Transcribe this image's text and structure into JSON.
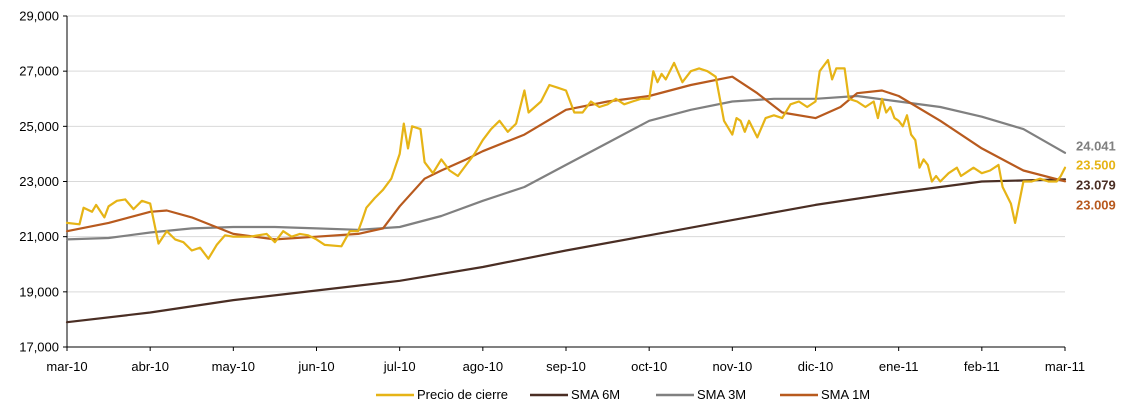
{
  "chart_data": {
    "type": "line",
    "title": "",
    "xlabel": "",
    "ylabel": "",
    "ylim": [
      17000,
      29000
    ],
    "y_ticks": [
      17000,
      19000,
      21000,
      23000,
      25000,
      27000,
      29000
    ],
    "y_tick_labels": [
      "17,000",
      "19,000",
      "21,000",
      "23,000",
      "25,000",
      "27,000",
      "29,000"
    ],
    "x_ticks": [
      "mar-10",
      "abr-10",
      "may-10",
      "jun-10",
      "jul-10",
      "ago-10",
      "sep-10",
      "oct-10",
      "nov-10",
      "dic-10",
      "ene-11",
      "feb-11",
      "mar-11"
    ],
    "grid": "horizontal",
    "legend_position": "bottom",
    "series": [
      {
        "name": "Precio de cierre",
        "color": "#E6B416",
        "end_label": "23.500",
        "points": [
          [
            0,
            21500
          ],
          [
            0.15,
            21450
          ],
          [
            0.2,
            22050
          ],
          [
            0.3,
            21900
          ],
          [
            0.35,
            22150
          ],
          [
            0.45,
            21700
          ],
          [
            0.5,
            22100
          ],
          [
            0.6,
            22300
          ],
          [
            0.7,
            22350
          ],
          [
            0.8,
            22000
          ],
          [
            0.9,
            22300
          ],
          [
            1.0,
            22200
          ],
          [
            1.1,
            20750
          ],
          [
            1.2,
            21200
          ],
          [
            1.3,
            20900
          ],
          [
            1.4,
            20800
          ],
          [
            1.5,
            20500
          ],
          [
            1.6,
            20600
          ],
          [
            1.7,
            20200
          ],
          [
            1.8,
            20700
          ],
          [
            1.9,
            21050
          ],
          [
            2.0,
            21000
          ],
          [
            2.2,
            21000
          ],
          [
            2.4,
            21100
          ],
          [
            2.5,
            20800
          ],
          [
            2.6,
            21200
          ],
          [
            2.7,
            21000
          ],
          [
            2.8,
            21100
          ],
          [
            2.9,
            21050
          ],
          [
            3.0,
            20900
          ],
          [
            3.1,
            20700
          ],
          [
            3.3,
            20650
          ],
          [
            3.4,
            21200
          ],
          [
            3.5,
            21200
          ],
          [
            3.55,
            21600
          ],
          [
            3.6,
            22050
          ],
          [
            3.7,
            22400
          ],
          [
            3.8,
            22700
          ],
          [
            3.9,
            23100
          ],
          [
            4.0,
            24000
          ],
          [
            4.05,
            25100
          ],
          [
            4.1,
            24200
          ],
          [
            4.15,
            25000
          ],
          [
            4.25,
            24900
          ],
          [
            4.3,
            23700
          ],
          [
            4.4,
            23300
          ],
          [
            4.5,
            23800
          ],
          [
            4.6,
            23400
          ],
          [
            4.7,
            23200
          ],
          [
            4.8,
            23600
          ],
          [
            4.9,
            24000
          ],
          [
            5.0,
            24500
          ],
          [
            5.1,
            24900
          ],
          [
            5.2,
            25200
          ],
          [
            5.3,
            24800
          ],
          [
            5.4,
            25100
          ],
          [
            5.5,
            26300
          ],
          [
            5.55,
            25500
          ],
          [
            5.7,
            25900
          ],
          [
            5.8,
            26500
          ],
          [
            5.9,
            26400
          ],
          [
            6.0,
            26300
          ],
          [
            6.1,
            25500
          ],
          [
            6.2,
            25500
          ],
          [
            6.3,
            25900
          ],
          [
            6.4,
            25700
          ],
          [
            6.5,
            25800
          ],
          [
            6.6,
            26000
          ],
          [
            6.7,
            25800
          ],
          [
            6.8,
            25900
          ],
          [
            6.9,
            26000
          ],
          [
            7.0,
            26000
          ],
          [
            7.05,
            27000
          ],
          [
            7.1,
            26600
          ],
          [
            7.15,
            26900
          ],
          [
            7.2,
            26700
          ],
          [
            7.3,
            27300
          ],
          [
            7.4,
            26600
          ],
          [
            7.5,
            27000
          ],
          [
            7.6,
            27100
          ],
          [
            7.7,
            27000
          ],
          [
            7.8,
            26800
          ],
          [
            7.85,
            26000
          ],
          [
            7.9,
            25200
          ],
          [
            8.0,
            24700
          ],
          [
            8.05,
            25300
          ],
          [
            8.1,
            25200
          ],
          [
            8.15,
            24800
          ],
          [
            8.2,
            25200
          ],
          [
            8.3,
            24600
          ],
          [
            8.4,
            25300
          ],
          [
            8.5,
            25400
          ],
          [
            8.6,
            25300
          ],
          [
            8.7,
            25800
          ],
          [
            8.8,
            25900
          ],
          [
            8.9,
            25700
          ],
          [
            9.0,
            25900
          ],
          [
            9.05,
            27000
          ],
          [
            9.1,
            27200
          ],
          [
            9.15,
            27400
          ],
          [
            9.2,
            26700
          ],
          [
            9.25,
            27100
          ],
          [
            9.35,
            27100
          ],
          [
            9.4,
            26000
          ],
          [
            9.5,
            25900
          ],
          [
            9.6,
            25700
          ],
          [
            9.7,
            25900
          ],
          [
            9.75,
            25300
          ],
          [
            9.8,
            26000
          ],
          [
            9.85,
            25500
          ],
          [
            9.9,
            25700
          ],
          [
            9.95,
            25300
          ],
          [
            10.0,
            25200
          ],
          [
            10.05,
            25000
          ],
          [
            10.1,
            25400
          ],
          [
            10.15,
            24700
          ],
          [
            10.2,
            24500
          ],
          [
            10.25,
            23500
          ],
          [
            10.3,
            23800
          ],
          [
            10.35,
            23600
          ],
          [
            10.4,
            23000
          ],
          [
            10.45,
            23200
          ],
          [
            10.5,
            23000
          ],
          [
            10.6,
            23300
          ],
          [
            10.7,
            23500
          ],
          [
            10.75,
            23200
          ],
          [
            10.8,
            23300
          ],
          [
            10.9,
            23500
          ],
          [
            11.0,
            23300
          ],
          [
            11.1,
            23400
          ],
          [
            11.2,
            23600
          ],
          [
            11.25,
            22800
          ],
          [
            11.35,
            22200
          ],
          [
            11.4,
            21500
          ],
          [
            11.5,
            23000
          ],
          [
            11.6,
            23000
          ],
          [
            11.7,
            23100
          ],
          [
            11.8,
            23000
          ],
          [
            11.9,
            23000
          ],
          [
            11.95,
            23200
          ],
          [
            12.0,
            23500
          ]
        ]
      },
      {
        "name": "SMA 6M",
        "color": "#4A2E24",
        "end_label": "23.079",
        "points": [
          [
            0,
            17900
          ],
          [
            1,
            18250
          ],
          [
            2,
            18700
          ],
          [
            3,
            19050
          ],
          [
            4,
            19400
          ],
          [
            5,
            19900
          ],
          [
            6,
            20500
          ],
          [
            7,
            21050
          ],
          [
            8,
            21600
          ],
          [
            9,
            22150
          ],
          [
            10,
            22600
          ],
          [
            11,
            23000
          ],
          [
            12,
            23079
          ]
        ]
      },
      {
        "name": "SMA 3M",
        "color": "#808080",
        "end_label": "24.041",
        "points": [
          [
            0,
            20900
          ],
          [
            0.5,
            20950
          ],
          [
            1,
            21150
          ],
          [
            1.5,
            21300
          ],
          [
            2,
            21350
          ],
          [
            2.5,
            21350
          ],
          [
            3,
            21300
          ],
          [
            3.5,
            21250
          ],
          [
            4,
            21350
          ],
          [
            4.5,
            21750
          ],
          [
            5,
            22300
          ],
          [
            5.5,
            22800
          ],
          [
            6,
            23600
          ],
          [
            6.5,
            24400
          ],
          [
            7,
            25200
          ],
          [
            7.5,
            25600
          ],
          [
            8,
            25900
          ],
          [
            8.5,
            26000
          ],
          [
            9,
            26000
          ],
          [
            9.5,
            26100
          ],
          [
            10,
            25900
          ],
          [
            10.5,
            25700
          ],
          [
            11,
            25350
          ],
          [
            11.5,
            24900
          ],
          [
            12,
            24041
          ]
        ]
      },
      {
        "name": "SMA 1M",
        "color": "#B85A1E",
        "end_label": "23.009",
        "points": [
          [
            0,
            21200
          ],
          [
            0.5,
            21500
          ],
          [
            1,
            21900
          ],
          [
            1.2,
            21950
          ],
          [
            1.5,
            21700
          ],
          [
            2,
            21100
          ],
          [
            2.5,
            20900
          ],
          [
            3,
            21000
          ],
          [
            3.5,
            21100
          ],
          [
            3.8,
            21300
          ],
          [
            4,
            22100
          ],
          [
            4.3,
            23100
          ],
          [
            4.5,
            23400
          ],
          [
            4.8,
            23800
          ],
          [
            5,
            24100
          ],
          [
            5.5,
            24700
          ],
          [
            6,
            25600
          ],
          [
            6.5,
            25900
          ],
          [
            7,
            26100
          ],
          [
            7.5,
            26500
          ],
          [
            8,
            26800
          ],
          [
            8.3,
            26200
          ],
          [
            8.6,
            25500
          ],
          [
            9,
            25300
          ],
          [
            9.3,
            25700
          ],
          [
            9.5,
            26200
          ],
          [
            9.8,
            26300
          ],
          [
            10,
            26100
          ],
          [
            10.5,
            25200
          ],
          [
            11,
            24200
          ],
          [
            11.5,
            23400
          ],
          [
            12,
            23009
          ]
        ]
      }
    ],
    "end_label_order": [
      "24.041",
      "23.500",
      "23.079",
      "23.009"
    ]
  }
}
